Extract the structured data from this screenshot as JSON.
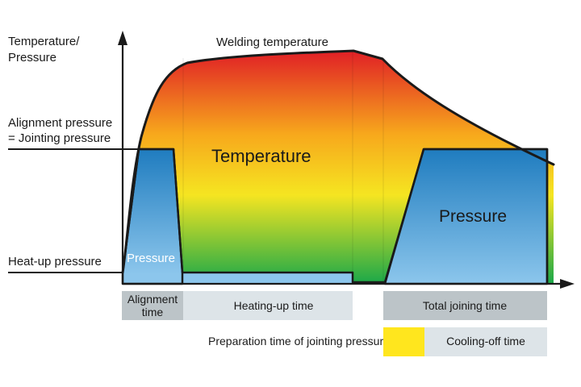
{
  "labels": {
    "y_axis_line1": "Temperature/",
    "y_axis_line2": "Pressure",
    "welding_temperature": "Welding temperature",
    "alignment_pressure_line1": "Alignment pressure",
    "alignment_pressure_line2": "= Jointing pressure",
    "heatup_pressure": "Heat-up pressure",
    "temperature": "Temperature",
    "pressure_small": "Pressure",
    "pressure_large": "Pressure"
  },
  "phases": {
    "alignment_line1": "Alignment",
    "alignment_line2": "time",
    "heating_up": "Heating-up time",
    "total_joining": "Total joining time",
    "preparation": "Preparation time of jointing pressure",
    "cooling_off": "Cooling-off time"
  },
  "colors": {
    "temp_hot": "#e01e26",
    "temp_mid": "#f7a81c",
    "temp_warm": "#f5e521",
    "temp_cool": "#1aa849",
    "pressure_dark": "#1f7cbf",
    "pressure_light": "#8cc6ec",
    "phase_dark": "#bcc4c8",
    "phase_light": "#dde4e8",
    "prep_yellow": "#ffe61e",
    "line": "#1a1a1a"
  }
}
